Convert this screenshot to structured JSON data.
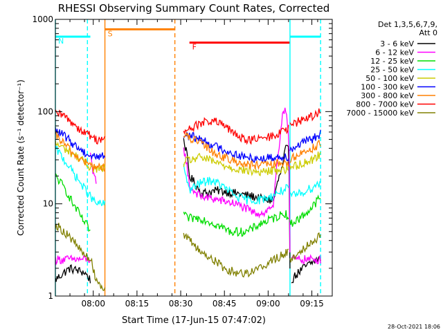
{
  "chart_data": {
    "type": "line",
    "title": "RHESSI Observing Summary Count Rates, Corrected",
    "xlabel": "Start Time (17-Jun-15 07:47:02)",
    "ylabel": "Corrected Count Rate (s⁻¹ detector⁻¹)",
    "yscale": "log",
    "ylim": [
      1,
      1000
    ],
    "xlim_minutes": [
      0,
      95
    ],
    "x_ticks": [
      {
        "t": 13,
        "label": "08:00"
      },
      {
        "t": 28,
        "label": "08:15"
      },
      {
        "t": 43,
        "label": "08:30"
      },
      {
        "t": 58,
        "label": "08:45"
      },
      {
        "t": 73,
        "label": "09:00"
      },
      {
        "t": 88,
        "label": "09:15"
      }
    ],
    "y_ticks": [
      {
        "v": 1,
        "label": "1"
      },
      {
        "v": 10,
        "label": "10"
      },
      {
        "v": 100,
        "label": "100"
      },
      {
        "v": 1000,
        "label": "1000"
      }
    ],
    "legend_header": [
      "Det 1,3,5,6,7,9,",
      "Att 0"
    ],
    "legend_position": "top-right",
    "footer_timestamp": "28-Oct-2021 18:06",
    "series": [
      {
        "name": "3 - 6 keV",
        "color": "#000000",
        "segments": [
          {
            "t": [
              0,
              5,
              10,
              12
            ],
            "v": [
              1.5,
              2.0,
              1.8,
              1.5
            ]
          },
          {
            "t": [
              44,
              46,
              50,
              56,
              62,
              68,
              72,
              75,
              78,
              79,
              80,
              80.5
            ],
            "v": [
              50,
              20,
              13,
              14,
              13,
              12,
              11,
              11,
              25,
              40,
              38,
              2
            ]
          },
          {
            "t": [
              81,
              85,
              90,
              91
            ],
            "v": [
              1.5,
              2.0,
              2.5,
              2.5
            ]
          }
        ]
      },
      {
        "name": "6 - 12 keV",
        "color": "#ff00ff",
        "segments": [
          {
            "t": [
              0,
              5,
              10,
              12
            ],
            "v": [
              2.5,
              2.5,
              2.5,
              2.5
            ]
          },
          {
            "t": [
              12,
              12.5,
              13,
              14
            ],
            "v": [
              35,
              25,
              20,
              18
            ]
          },
          {
            "t": [
              44,
              46,
              50,
              56,
              62,
              68,
              72,
              75,
              77,
              78,
              79,
              80,
              80.5
            ],
            "v": [
              40,
              15,
              12,
              11,
              10,
              8,
              8,
              10,
              40,
              100,
              110,
              60,
              3
            ]
          },
          {
            "t": [
              81,
              85,
              90,
              91
            ],
            "v": [
              2.5,
              2.5,
              2.5,
              2.5
            ]
          }
        ]
      },
      {
        "name": "12 - 25 keV",
        "color": "#00dd00",
        "segments": [
          {
            "t": [
              0,
              3,
              6,
              9,
              12
            ],
            "v": [
              20,
              15,
              10,
              7,
              5
            ]
          },
          {
            "t": [
              44,
              45,
              50,
              55,
              60,
              66,
              70,
              75,
              79,
              80
            ],
            "v": [
              8,
              7,
              7,
              6,
              5,
              5,
              6,
              7,
              8,
              7
            ]
          },
          {
            "t": [
              80.5,
              84,
              88,
              91
            ],
            "v": [
              6,
              7,
              9,
              12
            ]
          }
        ]
      },
      {
        "name": "25 - 50 keV",
        "color": "#00ffff",
        "segments": [
          {
            "t": [
              0,
              3,
              6,
              9,
              12,
              14,
              17
            ],
            "v": [
              40,
              30,
              22,
              16,
              12,
              10,
              10
            ]
          },
          {
            "t": [
              44,
              46,
              50,
              54,
              58,
              62,
              66,
              70,
              74,
              78,
              80
            ],
            "v": [
              25,
              14,
              17,
              18,
              15,
              12,
              11,
              11,
              12,
              14,
              15
            ]
          },
          {
            "t": [
              80.5,
              84,
              88,
              91
            ],
            "v": [
              12,
              13,
              15,
              17
            ]
          }
        ]
      },
      {
        "name": "50 - 100 keV",
        "color": "#cccc00",
        "segments": [
          {
            "t": [
              0,
              3,
              6,
              9,
              12,
              14,
              17
            ],
            "v": [
              45,
              40,
              35,
              30,
              25,
              24,
              24
            ]
          },
          {
            "t": [
              44,
              46,
              50,
              55,
              60,
              65,
              70,
              75,
              80
            ],
            "v": [
              28,
              30,
              32,
              28,
              25,
              23,
              22,
              23,
              24
            ]
          },
          {
            "t": [
              80.5,
              84,
              88,
              91
            ],
            "v": [
              25,
              27,
              30,
              35
            ]
          }
        ]
      },
      {
        "name": "100 - 300 keV",
        "color": "#0000ff",
        "segments": [
          {
            "t": [
              0,
              3,
              6,
              9,
              12,
              14,
              17
            ],
            "v": [
              62,
              55,
              45,
              38,
              33,
              33,
              33
            ]
          },
          {
            "t": [
              44,
              46,
              50,
              55,
              60,
              65,
              70,
              75,
              80
            ],
            "v": [
              55,
              55,
              50,
              42,
              36,
              32,
              31,
              32,
              33
            ]
          },
          {
            "t": [
              80.5,
              84,
              88,
              91
            ],
            "v": [
              38,
              45,
              50,
              58
            ]
          }
        ]
      },
      {
        "name": "300 - 800 keV",
        "color": "#ff8000",
        "segments": [
          {
            "t": [
              0,
              3,
              6,
              9,
              12,
              14,
              17
            ],
            "v": [
              55,
              45,
              35,
              30,
              26,
              25,
              25
            ]
          },
          {
            "t": [
              44,
              46,
              50,
              55,
              60,
              65,
              70,
              75,
              80
            ],
            "v": [
              55,
              52,
              45,
              35,
              30,
              27,
              26,
              27,
              28
            ]
          },
          {
            "t": [
              80.5,
              84,
              88,
              91
            ],
            "v": [
              30,
              35,
              40,
              45
            ]
          }
        ]
      },
      {
        "name": "800 - 7000 keV",
        "color": "#ff0000",
        "segments": [
          {
            "t": [
              0,
              3,
              6,
              9,
              12,
              14,
              17
            ],
            "v": [
              95,
              90,
              75,
              62,
              55,
              50,
              50
            ]
          },
          {
            "t": [
              44,
              46,
              50,
              54,
              58,
              62,
              66,
              70,
              75,
              80
            ],
            "v": [
              60,
              65,
              75,
              80,
              70,
              55,
              50,
              50,
              55,
              65
            ]
          },
          {
            "t": [
              80.5,
              84,
              88,
              91
            ],
            "v": [
              70,
              80,
              90,
              100
            ]
          }
        ]
      },
      {
        "name": "7000 - 15000 keV",
        "color": "#808000",
        "segments": [
          {
            "t": [
              0,
              3,
              6,
              9,
              12,
              14,
              17
            ],
            "v": [
              6,
              5,
              4,
              3,
              2.5,
              1.5,
              1.2
            ]
          },
          {
            "t": [
              44,
              46,
              48,
              50,
              54,
              58,
              62,
              66,
              70,
              75,
              80
            ],
            "v": [
              4.5,
              4,
              3.5,
              3,
              2.5,
              2,
              1.8,
              1.8,
              2,
              2.5,
              3
            ]
          },
          {
            "t": [
              80.5,
              84,
              88,
              91
            ],
            "v": [
              2.5,
              3,
              4,
              4.5
            ]
          }
        ]
      }
    ],
    "flag_bars": [
      {
        "label": "N",
        "color": "#00ffff",
        "label_color": "#00ffff",
        "t_start": 0,
        "t_end": 12,
        "v": 650
      },
      {
        "label": "",
        "color": "#00ffff",
        "label_color": "#00ffff",
        "t_start": 80.5,
        "t_end": 91,
        "v": 650
      },
      {
        "label": "S",
        "color": "#ff8000",
        "label_color": "#ff8000",
        "t_start": 17,
        "t_end": 41,
        "v": 780
      },
      {
        "label": "F",
        "color": "#ff0000",
        "label_color": "#ff0000",
        "t_start": 46,
        "t_end": 80.5,
        "v": 560
      }
    ],
    "vertical_markers": [
      {
        "t": 0,
        "color": "#00ffff",
        "style": "solid"
      },
      {
        "t": 11,
        "color": "#00ffff",
        "style": "dashed"
      },
      {
        "t": 17,
        "color": "#ff8000",
        "style": "solid"
      },
      {
        "t": 41,
        "color": "#ff8000",
        "style": "dashed"
      },
      {
        "t": 80.5,
        "color": "#00ffff",
        "style": "solid"
      },
      {
        "t": 91,
        "color": "#00ffff",
        "style": "dashed"
      }
    ]
  }
}
